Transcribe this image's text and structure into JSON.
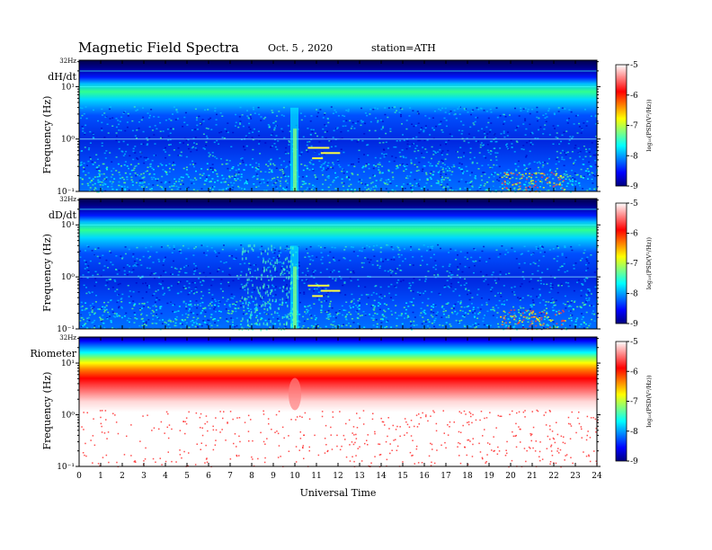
{
  "header": {
    "title": "Magnetic  Field  Spectra",
    "date": "Oct. 5  , 2020",
    "station": "station=ATH"
  },
  "colors": {
    "scale": [
      "#00007f",
      "#0000ff",
      "#0080ff",
      "#00ffff",
      "#80ff80",
      "#ffff00",
      "#ff8000",
      "#ff0000",
      "#ff8080",
      "#ffffff"
    ]
  },
  "chart_data": [
    {
      "type": "heatmap",
      "panel_label": "dH/dt",
      "ylabel": "Frequency  (Hz)",
      "y_top_label": "32Hz",
      "y_scale": "log",
      "y_ticks": [
        "10⁻¹",
        "10⁰",
        "10¹"
      ],
      "x_range": [
        0,
        24
      ],
      "colorbar": {
        "label": "log₁₀(PSD(V²/Hz))",
        "ticks": [
          "-5",
          "-6",
          "-7",
          "-8",
          "-9"
        ],
        "range": [
          -9,
          -5
        ]
      }
    },
    {
      "type": "heatmap",
      "panel_label": "dD/dt",
      "ylabel": "Frequency  (Hz)",
      "y_top_label": "32Hz",
      "y_scale": "log",
      "y_ticks": [
        "10⁻¹",
        "10⁰",
        "10¹"
      ],
      "x_range": [
        0,
        24
      ],
      "colorbar": {
        "label": "log₁₀(PSD(V²/Hz))",
        "ticks": [
          "-5",
          "-6",
          "-7",
          "-8",
          "-9"
        ],
        "range": [
          -9,
          -5
        ]
      }
    },
    {
      "type": "heatmap",
      "panel_label": "Riometer",
      "ylabel": "Frequency  (Hz)",
      "y_top_label": "32Hz",
      "y_scale": "log",
      "y_ticks": [
        "10⁻¹",
        "10⁰",
        "10¹"
      ],
      "x_range": [
        0,
        24
      ],
      "colorbar": {
        "label": "log₁₀(PSD(V²/Hz))",
        "ticks": [
          "-5",
          "-6",
          "-7",
          "-8",
          "-9"
        ],
        "range": [
          -9,
          -5
        ]
      }
    }
  ],
  "x_axis": {
    "label": "Universal  Time",
    "ticks": [
      "0",
      "1",
      "2",
      "3",
      "4",
      "5",
      "6",
      "7",
      "8",
      "9",
      "10",
      "11",
      "12",
      "13",
      "14",
      "15",
      "16",
      "17",
      "18",
      "19",
      "20",
      "21",
      "22",
      "23",
      "24"
    ]
  }
}
